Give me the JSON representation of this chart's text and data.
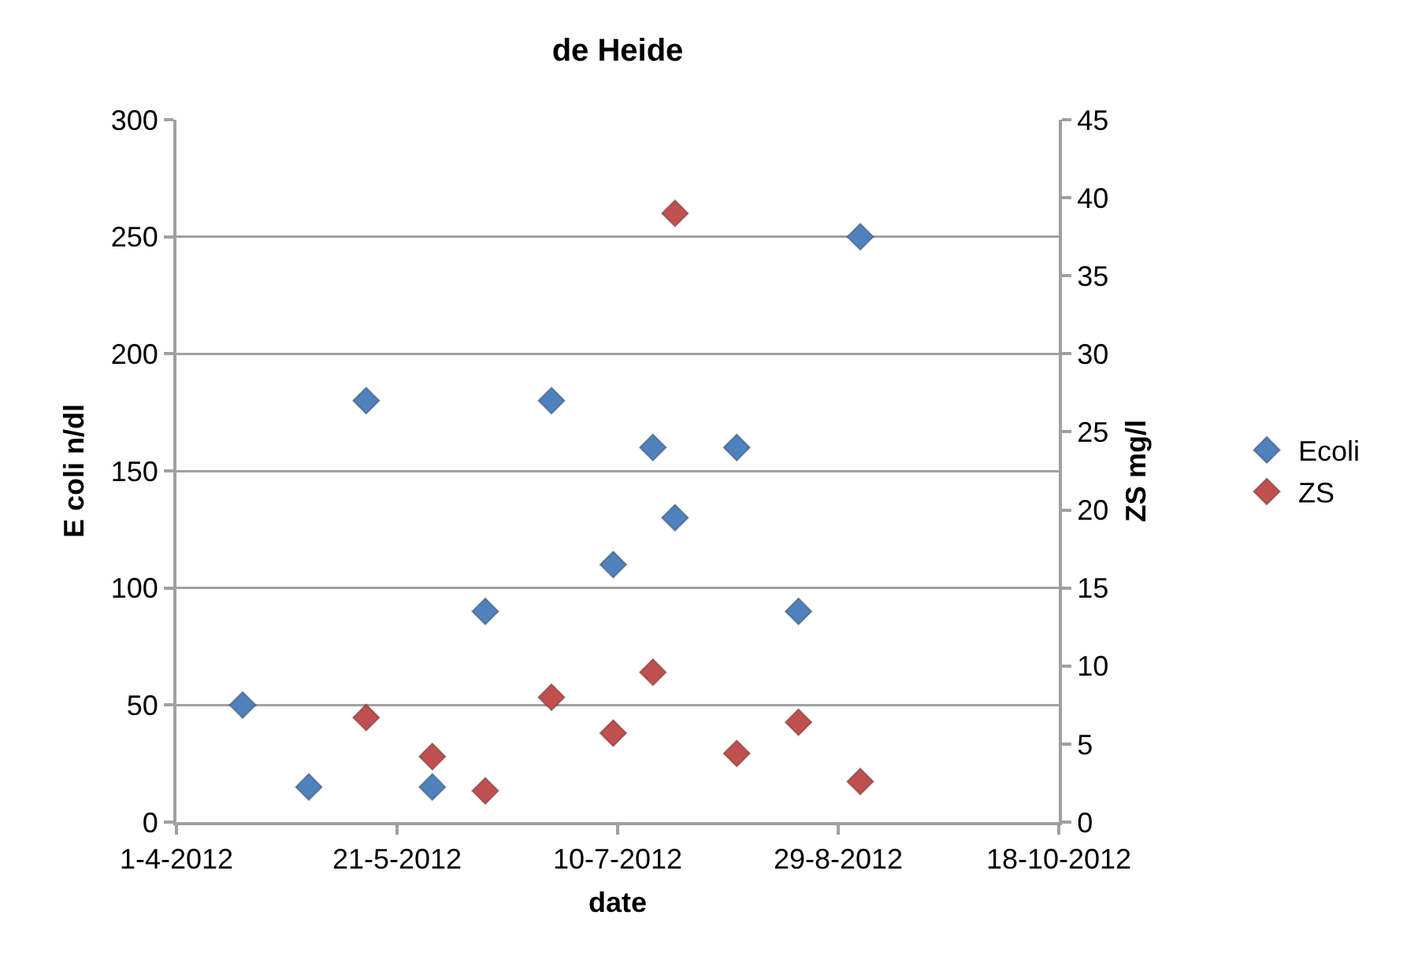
{
  "chart_data": {
    "type": "scatter",
    "title": "de Heide",
    "xlabel": "date",
    "ylabel": "E coli n/dl",
    "y2label": "ZS mg/l",
    "xlim": [
      "2012-04-01",
      "2012-10-18"
    ],
    "xticks": [
      {
        "value": "2012-04-01",
        "label": "1-4-2012"
      },
      {
        "value": "2012-05-21",
        "label": "21-5-2012"
      },
      {
        "value": "2012-07-10",
        "label": "10-7-2012"
      },
      {
        "value": "2012-08-29",
        "label": "29-8-2012"
      },
      {
        "value": "2012-10-18",
        "label": "18-10-2012"
      }
    ],
    "ylim": [
      0,
      300
    ],
    "yticks": [
      0,
      50,
      100,
      150,
      200,
      250,
      300
    ],
    "y2lim": [
      0,
      45
    ],
    "y2ticks": [
      0,
      5,
      10,
      15,
      20,
      25,
      30,
      35,
      40,
      45
    ],
    "series": [
      {
        "name": "Ecoli",
        "color": "#4f81bd",
        "x": [
          "2012-04-16",
          "2012-05-01",
          "2012-05-14",
          "2012-05-29",
          "2012-06-10",
          "2012-06-25",
          "2012-07-09",
          "2012-07-18",
          "2012-07-23",
          "2012-08-06",
          "2012-08-20",
          "2012-09-03"
        ],
        "values": [
          50,
          15,
          180,
          15,
          90,
          180,
          110,
          160,
          130,
          160,
          90,
          250
        ]
      },
      {
        "name": "ZS",
        "color": "#c0504d",
        "axis": "y2",
        "x": [
          "2012-05-14",
          "2012-05-29",
          "2012-06-10",
          "2012-06-25",
          "2012-07-09",
          "2012-07-18",
          "2012-07-23",
          "2012-08-06",
          "2012-08-20",
          "2012-09-03"
        ],
        "values": [
          6.7,
          4.2,
          2.0,
          8.0,
          5.7,
          9.6,
          39.0,
          4.4,
          6.4,
          2.6
        ]
      }
    ],
    "marker": "diamond",
    "grid": "y",
    "legend": "right"
  }
}
